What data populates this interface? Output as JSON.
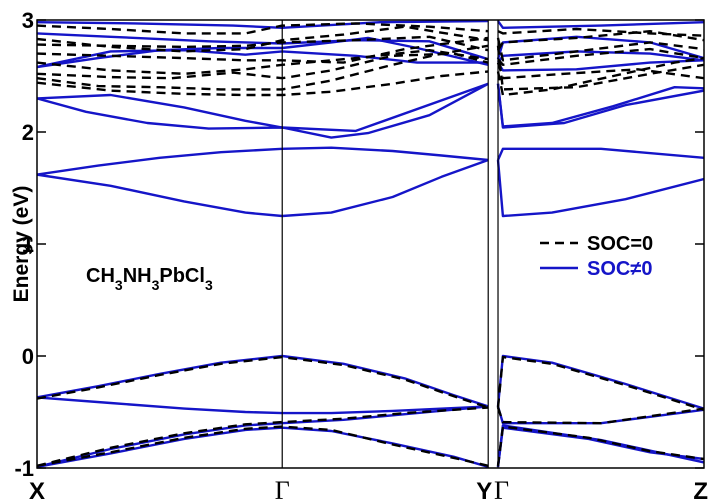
{
  "chart_data": {
    "type": "line",
    "ylabel": "Energy (eV)",
    "ylim": [
      -1,
      3
    ],
    "yticks": [
      -1,
      0,
      1,
      2,
      3
    ],
    "kpoints": [
      {
        "label": "X",
        "x": 0
      },
      {
        "label": "Γ",
        "x": 1
      },
      {
        "label": "Y",
        "x": 1.84
      },
      {
        "label": "Γ",
        "x": 1.88
      },
      {
        "label": "Z",
        "x": 2.72
      }
    ],
    "annotation": "CH3NH3PbCl3",
    "legend": {
      "placement": "right",
      "entries": [
        {
          "label": "SOC=0",
          "color": "#000000",
          "style": "dashed"
        },
        {
          "label": "SOC≠0",
          "color": "#1515c8",
          "style": "solid"
        }
      ]
    },
    "series": [
      {
        "name": "SOC≠0",
        "color": "#1515c8",
        "style": "solid",
        "bands": [
          {
            "x": [
              0,
              0.25,
              0.5,
              0.75,
              1,
              1.2,
              1.45,
              1.65,
              1.84
            ],
            "y": [
              1.62,
              1.7,
              1.77,
              1.82,
              1.85,
              1.86,
              1.83,
              1.79,
              1.75
            ]
          },
          {
            "x": [
              0,
              0.3,
              0.6,
              0.85,
              1,
              1.2,
              1.45,
              1.65,
              1.84
            ],
            "y": [
              1.62,
              1.52,
              1.38,
              1.28,
              1.25,
              1.28,
              1.42,
              1.6,
              1.75
            ]
          },
          {
            "x": [
              0,
              0.2,
              0.45,
              0.7,
              1,
              1.3,
              1.84
            ],
            "y": [
              2.3,
              2.18,
              2.08,
              2.03,
              2.04,
              2.01,
              2.43
            ]
          },
          {
            "x": [
              0,
              0.3,
              0.6,
              0.85,
              1,
              1.2,
              1.35,
              1.6,
              1.84
            ],
            "y": [
              2.3,
              2.33,
              2.22,
              2.1,
              2.04,
              1.95,
              1.99,
              2.15,
              2.43
            ]
          },
          {
            "x": [
              0,
              0.3,
              0.6,
              0.85,
              1,
              1.3,
              1.55,
              1.84
            ],
            "y": [
              2.58,
              2.72,
              2.73,
              2.69,
              2.72,
              2.68,
              2.62,
              2.62
            ]
          },
          {
            "x": [
              0,
              0.25,
              0.5,
              0.75,
              1,
              1.2,
              1.35,
              1.55,
              1.84
            ],
            "y": [
              2.58,
              2.66,
              2.73,
              2.75,
              2.75,
              2.8,
              2.84,
              2.75,
              2.6
            ]
          },
          {
            "x": [
              0,
              0.3,
              0.7,
              1,
              1.3,
              1.6,
              1.84
            ],
            "y": [
              2.88,
              2.85,
              2.81,
              2.79,
              2.82,
              2.81,
              2.65
            ]
          },
          {
            "x": [
              0,
              0.4,
              0.8,
              1,
              1.4,
              1.84
            ],
            "y": [
              2.98,
              2.97,
              2.95,
              2.93,
              2.98,
              2.99
            ]
          },
          {
            "x": [
              0,
              0.25,
              0.5,
              0.75,
              1,
              1.25,
              1.5,
              1.7,
              1.84
            ],
            "y": [
              -0.37,
              -0.27,
              -0.16,
              -0.06,
              0.0,
              -0.07,
              -0.2,
              -0.35,
              -0.45
            ]
          },
          {
            "x": [
              0,
              0.3,
              0.6,
              0.85,
              1,
              1.2,
              1.45,
              1.84
            ],
            "y": [
              -0.37,
              -0.42,
              -0.47,
              -0.5,
              -0.51,
              -0.51,
              -0.49,
              -0.45
            ]
          },
          {
            "x": [
              0,
              0.3,
              0.6,
              0.85,
              1,
              1.25,
              1.5,
              1.84
            ],
            "y": [
              -0.99,
              -0.83,
              -0.7,
              -0.62,
              -0.6,
              -0.57,
              -0.52,
              -0.45
            ]
          },
          {
            "x": [
              0,
              0.3,
              0.6,
              0.85,
              1,
              1.2,
              1.45,
              1.7,
              1.84
            ],
            "y": [
              -0.99,
              -0.87,
              -0.74,
              -0.66,
              -0.64,
              -0.67,
              -0.78,
              -0.9,
              -0.99
            ]
          },
          {
            "x": [
              1.88,
              1.9,
              2.1,
              2.4,
              2.72
            ],
            "y": [
              1.75,
              1.25,
              1.28,
              1.4,
              1.58
            ]
          },
          {
            "x": [
              1.88,
              1.9,
              2.3,
              2.72
            ],
            "y": [
              1.75,
              1.85,
              1.85,
              1.77
            ]
          },
          {
            "x": [
              1.88,
              1.9,
              2.15,
              2.4,
              2.72
            ],
            "y": [
              2.43,
              2.04,
              2.08,
              2.24,
              2.37
            ]
          },
          {
            "x": [
              1.88,
              1.9,
              2.1,
              2.35,
              2.6,
              2.72
            ],
            "y": [
              2.43,
              2.05,
              2.08,
              2.23,
              2.4,
              2.39
            ]
          },
          {
            "x": [
              1.88,
              1.9,
              2.2,
              2.5,
              2.72
            ],
            "y": [
              2.62,
              2.55,
              2.56,
              2.62,
              2.64
            ]
          },
          {
            "x": [
              1.88,
              1.9,
              2.2,
              2.5,
              2.72
            ],
            "y": [
              2.62,
              2.68,
              2.72,
              2.7,
              2.64
            ]
          },
          {
            "x": [
              1.88,
              1.9,
              2.2,
              2.5,
              2.72
            ],
            "y": [
              2.65,
              2.8,
              2.85,
              2.8,
              2.66
            ]
          },
          {
            "x": [
              1.88,
              1.9,
              2.3,
              2.72
            ],
            "y": [
              2.99,
              2.93,
              2.95,
              2.98
            ]
          },
          {
            "x": [
              1.88,
              1.9,
              2.1,
              2.4,
              2.72
            ],
            "y": [
              -0.45,
              0.0,
              -0.06,
              -0.25,
              -0.47
            ]
          },
          {
            "x": [
              1.88,
              1.9,
              2.3,
              2.72
            ],
            "y": [
              -0.45,
              -0.6,
              -0.6,
              -0.48
            ]
          },
          {
            "x": [
              1.88,
              1.9,
              2.3,
              2.72
            ],
            "y": [
              -0.99,
              -0.62,
              -0.75,
              -0.95
            ]
          },
          {
            "x": [
              1.88,
              1.9,
              2.25,
              2.5,
              2.72
            ],
            "y": [
              -0.99,
              -0.64,
              -0.74,
              -0.86,
              -0.92
            ]
          }
        ]
      },
      {
        "name": "SOC=0",
        "color": "#000000",
        "style": "dashed",
        "bands": [
          {
            "x": [
              0,
              0.3,
              0.6,
              0.85,
              1,
              1.2,
              1.45,
              1.65,
              1.84
            ],
            "y": [
              2.44,
              2.37,
              2.34,
              2.33,
              2.33,
              2.36,
              2.43,
              2.5,
              2.54
            ]
          },
          {
            "x": [
              0,
              0.25,
              0.5,
              0.75,
              1,
              1.2,
              1.45,
              1.65,
              1.84
            ],
            "y": [
              2.48,
              2.41,
              2.4,
              2.38,
              2.38,
              2.46,
              2.6,
              2.7,
              2.77
            ]
          },
          {
            "x": [
              0,
              0.3,
              0.55,
              0.8,
              1,
              1.2,
              1.45,
              1.7,
              1.84
            ],
            "y": [
              2.52,
              2.49,
              2.48,
              2.53,
              2.48,
              2.55,
              2.68,
              2.7,
              2.62
            ]
          },
          {
            "x": [
              0,
              0.3,
              0.6,
              0.85,
              1,
              1.3,
              1.6,
              1.84
            ],
            "y": [
              2.62,
              2.55,
              2.52,
              2.56,
              2.6,
              2.66,
              2.73,
              2.65
            ]
          },
          {
            "x": [
              0,
              0.3,
              0.6,
              0.85,
              1,
              1.25,
              1.5,
              1.84
            ],
            "y": [
              2.7,
              2.68,
              2.66,
              2.64,
              2.64,
              2.62,
              2.74,
              2.84
            ]
          },
          {
            "x": [
              0,
              0.3,
              0.6,
              0.85,
              1,
              1.3,
              1.6,
              1.84
            ],
            "y": [
              2.78,
              2.77,
              2.76,
              2.77,
              2.8,
              2.82,
              2.85,
              2.73
            ]
          },
          {
            "x": [
              0,
              0.3,
              0.6,
              0.85,
              1,
              1.25,
              1.5,
              1.84
            ],
            "y": [
              2.83,
              2.76,
              2.72,
              2.74,
              2.82,
              2.87,
              2.94,
              2.82
            ]
          },
          {
            "x": [
              0,
              0.3,
              0.6,
              0.85,
              1,
              1.3,
              1.6,
              1.84
            ],
            "y": [
              2.95,
              2.92,
              2.88,
              2.88,
              2.95,
              2.97,
              2.94,
              2.9
            ]
          },
          {
            "x": [
              0,
              0.25,
              0.5,
              0.75,
              1,
              1.25,
              1.5,
              1.7,
              1.84
            ],
            "y": [
              -0.38,
              -0.28,
              -0.17,
              -0.07,
              -0.01,
              -0.08,
              -0.21,
              -0.36,
              -0.46
            ]
          },
          {
            "x": [
              0,
              0.3,
              0.6,
              0.85,
              1,
              1.25,
              1.5,
              1.84
            ],
            "y": [
              -0.98,
              -0.82,
              -0.69,
              -0.61,
              -0.59,
              -0.56,
              -0.51,
              -0.46
            ]
          },
          {
            "x": [
              0,
              0.3,
              0.6,
              0.85,
              1,
              1.2,
              1.45,
              1.7,
              1.84
            ],
            "y": [
              -0.98,
              -0.86,
              -0.73,
              -0.65,
              -0.63,
              -0.66,
              -0.79,
              -0.91,
              -0.98
            ]
          },
          {
            "x": [
              1.88,
              1.9,
              2.1,
              2.35,
              2.6,
              2.72
            ],
            "y": [
              2.54,
              2.33,
              2.38,
              2.5,
              2.62,
              2.66
            ]
          },
          {
            "x": [
              1.88,
              1.9,
              2.2,
              2.5,
              2.72
            ],
            "y": [
              2.77,
              2.38,
              2.4,
              2.52,
              2.6
            ]
          },
          {
            "x": [
              1.88,
              1.9,
              2.15,
              2.45,
              2.72
            ],
            "y": [
              2.62,
              2.48,
              2.52,
              2.56,
              2.48
            ]
          },
          {
            "x": [
              1.88,
              1.9,
              2.2,
              2.5,
              2.72
            ],
            "y": [
              2.65,
              2.6,
              2.68,
              2.74,
              2.66
            ]
          },
          {
            "x": [
              1.88,
              1.9,
              2.2,
              2.5,
              2.72
            ],
            "y": [
              2.84,
              2.64,
              2.72,
              2.8,
              2.74
            ]
          },
          {
            "x": [
              1.88,
              1.9,
              2.2,
              2.5,
              2.72
            ],
            "y": [
              2.73,
              2.8,
              2.84,
              2.9,
              2.82
            ]
          },
          {
            "x": [
              1.88,
              1.9,
              2.2,
              2.5,
              2.72
            ],
            "y": [
              2.9,
              2.88,
              2.92,
              2.88,
              2.86
            ]
          },
          {
            "x": [
              1.88,
              1.9,
              2.1,
              2.4,
              2.72
            ],
            "y": [
              -0.46,
              -0.01,
              -0.07,
              -0.26,
              -0.48
            ]
          },
          {
            "x": [
              1.88,
              1.9,
              2.3,
              2.72
            ],
            "y": [
              -0.46,
              -0.59,
              -0.6,
              -0.47
            ]
          },
          {
            "x": [
              1.88,
              1.9,
              2.25,
              2.5,
              2.72
            ],
            "y": [
              -0.98,
              -0.63,
              -0.73,
              -0.85,
              -0.92
            ]
          }
        ]
      }
    ]
  }
}
